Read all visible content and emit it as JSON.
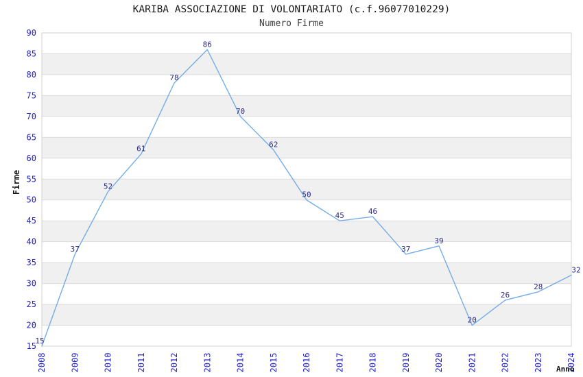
{
  "chart_data": {
    "type": "line",
    "title": "KARIBA ASSOCIAZIONE DI VOLONTARIATO (c.f.96077010229)",
    "subtitle": "Numero Firme",
    "xlabel": "Anno",
    "ylabel": "Firme",
    "categories": [
      "2008",
      "2009",
      "2010",
      "2011",
      "2012",
      "2013",
      "2014",
      "2015",
      "2016",
      "2017",
      "2018",
      "2019",
      "2020",
      "2021",
      "2022",
      "2023",
      "2024"
    ],
    "values": [
      15,
      37,
      52,
      61,
      78,
      86,
      70,
      62,
      50,
      45,
      46,
      37,
      39,
      20,
      26,
      28,
      32
    ],
    "ylim": [
      15,
      90
    ],
    "ytick_step": 5,
    "grid": "horizontal-bands",
    "legend": "none",
    "data_labels_shown": true,
    "colors": {
      "line": "#74ACE6",
      "tick_label": "#2222CC",
      "data_label": "#2B2B8C",
      "band": "#F0F0F0",
      "gridline": "#DBDBDB",
      "plot_border": "#D2D2D2",
      "title": "#1A1A1A",
      "subtitle": "#3C3C3C",
      "axis_title": "#111111",
      "background": "#FFFFFF"
    }
  }
}
